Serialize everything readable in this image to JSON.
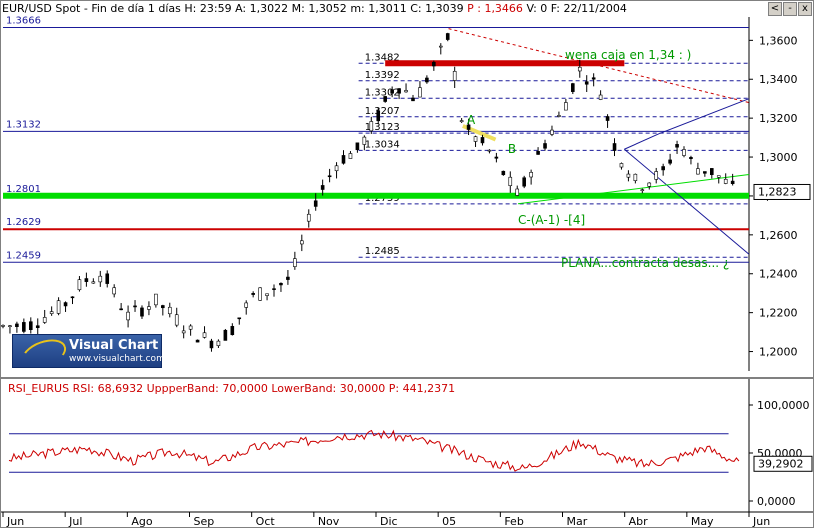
{
  "header": {
    "symbol": "EUR/USD Spot - Fin de día 1 días",
    "h": "H: 23:59",
    "a": "A: 1,3022",
    "m": "M: 1,3052",
    "mm": "m: 1,3011",
    "c": "C: 1,3039",
    "p": "P : 1,3466",
    "v": "V: 0",
    "f": "F: 22/11/2004"
  },
  "window_buttons": [
    "<",
    "-",
    "x"
  ],
  "logo": {
    "title": "Visual Chart",
    "url": "www.visualchart.com"
  },
  "rsi_header": {
    "name": "RSI_EURUS",
    "rsi": "RSI: 68,6932",
    "upper": "UppperBand: 70,0000",
    "lower": "LowerBand: 30,0000",
    "p": "P: 441,2371"
  },
  "colors": {
    "support": "#00dd00",
    "resistance": "#cc0000",
    "level": "#1a1a99",
    "rsi": "#cc0000",
    "annotation": "#009900"
  },
  "chart_data": [
    {
      "type": "candlestick",
      "x_labels": [
        "Jun",
        "Jul",
        "Ago",
        "Sep",
        "Oct",
        "Nov",
        "Dic",
        "05",
        "Feb",
        "Mar",
        "Abr",
        "May",
        "Jun"
      ],
      "y_ticks": [
        "1,2000",
        "1,2200",
        "1,2400",
        "1,2600",
        "1,2800",
        "1,3000",
        "1,3200",
        "1,3400",
        "1,3600"
      ],
      "ylim": [
        1.19,
        1.372
      ],
      "x_months": [
        "2004-06-01",
        "2005-06-01"
      ],
      "last_price": "1,2823",
      "horizontal_levels": [
        "1.3666",
        "1.3132",
        "1.2801",
        "1.2629",
        "1.2459"
      ],
      "retracement_levels": [
        "1.3482",
        "1.3392",
        "1.3302",
        "1.3207",
        "1.3123",
        "1.3034",
        "1.2759",
        "1.2485"
      ],
      "annotations": [
        "wena caja en 1,34 : )",
        "A",
        "B",
        "C-(A-1) -[4]",
        "PLANA...contracta desas... ¿"
      ],
      "price_path": [
        [
          "2004-06-01",
          1.213
        ],
        [
          "2004-06-15",
          1.214
        ],
        [
          "2004-07-01",
          1.224
        ],
        [
          "2004-07-10",
          1.236
        ],
        [
          "2004-07-20",
          1.24
        ],
        [
          "2004-08-01",
          1.218
        ],
        [
          "2004-08-15",
          1.226
        ],
        [
          "2004-09-01",
          1.21
        ],
        [
          "2004-09-12",
          1.205
        ],
        [
          "2004-09-20",
          1.21
        ],
        [
          "2004-10-01",
          1.228
        ],
        [
          "2004-10-12",
          1.233
        ],
        [
          "2004-10-20",
          1.238
        ],
        [
          "2004-11-01",
          1.278
        ],
        [
          "2004-11-12",
          1.298
        ],
        [
          "2004-11-22",
          1.304
        ],
        [
          "2004-12-01",
          1.32
        ],
        [
          "2004-12-10",
          1.338
        ],
        [
          "2004-12-20",
          1.33
        ],
        [
          "2005-01-01",
          1.353
        ],
        [
          "2005-01-05",
          1.362
        ],
        [
          "2005-01-12",
          1.316
        ],
        [
          "2005-01-25",
          1.303
        ],
        [
          "2005-02-08",
          1.28
        ],
        [
          "2005-02-20",
          1.305
        ],
        [
          "2005-03-01",
          1.322
        ],
        [
          "2005-03-10",
          1.345
        ],
        [
          "2005-03-20",
          1.335
        ],
        [
          "2005-03-28",
          1.303
        ],
        [
          "2005-04-08",
          1.285
        ],
        [
          "2005-04-20",
          1.292
        ],
        [
          "2005-04-28",
          1.308
        ],
        [
          "2005-05-05",
          1.295
        ],
        [
          "2005-05-15",
          1.292
        ],
        [
          "2005-05-25",
          1.283
        ]
      ]
    },
    {
      "type": "line",
      "name": "RSI_EURUS",
      "y_ticks": [
        "0,0000",
        "50,0000",
        "100,0000"
      ],
      "ylim": [
        0,
        100
      ],
      "bands": [
        30,
        70
      ],
      "last_value": "39,2902",
      "path": [
        [
          "2004-06-01",
          44
        ],
        [
          "2004-06-20",
          50
        ],
        [
          "2004-07-10",
          55
        ],
        [
          "2004-08-01",
          42
        ],
        [
          "2004-08-20",
          52
        ],
        [
          "2004-09-10",
          40
        ],
        [
          "2004-10-01",
          56
        ],
        [
          "2004-10-20",
          60
        ],
        [
          "2004-11-10",
          68
        ],
        [
          "2004-12-01",
          70
        ],
        [
          "2004-12-20",
          64
        ],
        [
          "2005-01-10",
          50
        ],
        [
          "2005-01-25",
          40
        ],
        [
          "2005-02-10",
          34
        ],
        [
          "2005-02-25",
          48
        ],
        [
          "2005-03-10",
          62
        ],
        [
          "2005-03-25",
          46
        ],
        [
          "2005-04-10",
          38
        ],
        [
          "2005-04-25",
          44
        ],
        [
          "2005-05-10",
          56
        ],
        [
          "2005-05-28",
          39
        ]
      ]
    }
  ]
}
